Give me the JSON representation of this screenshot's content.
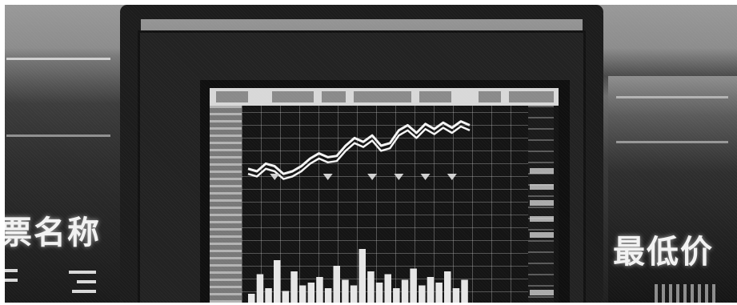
{
  "photo": {
    "subject": "stock-quote-monitor",
    "left_sign_text": "票名称",
    "right_sign_text": "最低价",
    "tone": "grayscale"
  },
  "chart_data": {
    "type": "line",
    "series": [
      {
        "values": [
          62,
          60,
          66,
          64,
          58,
          60,
          64,
          70,
          74,
          71,
          72,
          80,
          86,
          83,
          88,
          80,
          82,
          92,
          96,
          90,
          97,
          93,
          98,
          94,
          99,
          96
        ]
      },
      {
        "values": [
          58,
          56,
          62,
          60,
          54,
          56,
          60,
          66,
          70,
          67,
          68,
          76,
          82,
          79,
          84,
          76,
          78,
          88,
          92,
          86,
          93,
          89,
          94,
          90,
          95,
          92
        ]
      }
    ],
    "volume": [
      20,
      55,
      30,
      80,
      25,
      60,
      35,
      40,
      50,
      30,
      70,
      45,
      35,
      100,
      60,
      40,
      55,
      30,
      45,
      65,
      35,
      50,
      40,
      60,
      30,
      45
    ]
  }
}
